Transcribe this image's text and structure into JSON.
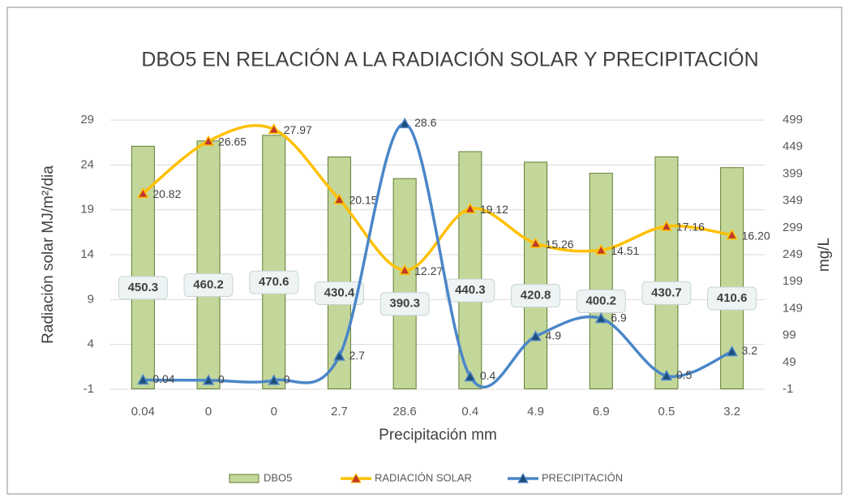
{
  "chart_data": {
    "type": "combo",
    "title": "DBO5 EN RELACIÓN A LA RADIACIÓN SOLAR Y PRECIPITACIÓN",
    "x_label": "Precipitación mm",
    "y_label": "Radiación solar MJ/m²/dia",
    "y2_label": "mg/L",
    "categories": [
      "0.04",
      "0",
      "0",
      "2.7",
      "28.6",
      "0.4",
      "4.9",
      "6.9",
      "0.5",
      "3.2"
    ],
    "series": [
      {
        "name": "DBO5",
        "type": "bar",
        "axis": "y2",
        "color": "#c4d79b",
        "values": [
          450.3,
          460.2,
          470.6,
          430.4,
          390.3,
          440.3,
          420.8,
          400.2,
          430.7,
          410.6
        ]
      },
      {
        "name": "RADIACIÓN SOLAR",
        "type": "line",
        "color": "#ffc000",
        "values": [
          20.82,
          26.65,
          27.97,
          20.15,
          12.27,
          19.12,
          15.26,
          14.51,
          17.16,
          16.2
        ],
        "value_labels": [
          "20.82",
          "26.65",
          "27.97",
          "20.15",
          "12.27",
          "19.12",
          "15.26",
          "14.51",
          "17.16",
          "16.20"
        ]
      },
      {
        "name": "PRECIPITACIÓN",
        "type": "line",
        "color": "#4a86c8",
        "values": [
          0.04,
          0,
          0,
          2.7,
          28.6,
          0.4,
          4.9,
          6.9,
          0.5,
          3.2
        ]
      }
    ],
    "ylim": [
      -1,
      29
    ],
    "yticks": [
      -1,
      4,
      9,
      14,
      19,
      24,
      29
    ],
    "y2lim": [
      -1,
      499
    ],
    "y2ticks": [
      -1,
      49,
      99,
      149,
      199,
      249,
      299,
      349,
      399,
      449,
      499
    ],
    "grid": true,
    "legend": "bottom"
  }
}
